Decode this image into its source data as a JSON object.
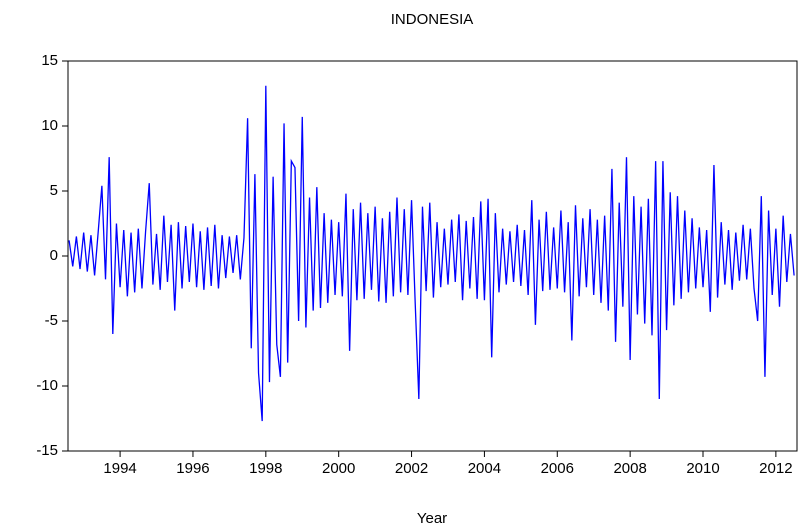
{
  "chart_data": {
    "type": "line",
    "title": "INDONESIA",
    "x_label": "Year",
    "xlim": [
      1992.57,
      2012.58
    ],
    "xticks": [
      1994,
      1996,
      1998,
      2000,
      2002,
      2004,
      2006,
      2008,
      2010,
      2012
    ],
    "ylim": [
      -15,
      15
    ],
    "yticks": [
      -15,
      -10,
      -5,
      0,
      5,
      10,
      15
    ],
    "series": [
      {
        "color": "#0000ff",
        "x": [
          1992.6,
          1992.7,
          1992.8,
          1992.9,
          1993.0,
          1993.1,
          1993.2,
          1993.3,
          1993.4,
          1993.5,
          1993.6,
          1993.7,
          1993.8,
          1993.9,
          1994.0,
          1994.1,
          1994.2,
          1994.3,
          1994.4,
          1994.5,
          1994.6,
          1994.7,
          1994.8,
          1994.9,
          1995.0,
          1995.1,
          1995.2,
          1995.3,
          1995.4,
          1995.5,
          1995.6,
          1995.7,
          1995.8,
          1995.9,
          1996.0,
          1996.1,
          1996.2,
          1996.3,
          1996.4,
          1996.5,
          1996.6,
          1996.7,
          1996.8,
          1996.9,
          1997.0,
          1997.1,
          1997.2,
          1997.3,
          1997.4,
          1997.5,
          1997.6,
          1997.7,
          1997.8,
          1997.9,
          1998.0,
          1998.1,
          1998.2,
          1998.3,
          1998.4,
          1998.5,
          1998.6,
          1998.7,
          1998.8,
          1998.9,
          1999.0,
          1999.1,
          1999.2,
          1999.3,
          1999.4,
          1999.5,
          1999.6,
          1999.7,
          1999.8,
          1999.9,
          2000.0,
          2000.1,
          2000.2,
          2000.3,
          2000.4,
          2000.5,
          2000.6,
          2000.7,
          2000.8,
          2000.9,
          2001.0,
          2001.1,
          2001.2,
          2001.3,
          2001.4,
          2001.5,
          2001.6,
          2001.7,
          2001.8,
          2001.9,
          2002.0,
          2002.1,
          2002.2,
          2002.3,
          2002.4,
          2002.5,
          2002.6,
          2002.7,
          2002.8,
          2002.9,
          2003.0,
          2003.1,
          2003.2,
          2003.3,
          2003.4,
          2003.5,
          2003.6,
          2003.7,
          2003.8,
          2003.9,
          2004.0,
          2004.1,
          2004.2,
          2004.3,
          2004.4,
          2004.5,
          2004.6,
          2004.7,
          2004.8,
          2004.9,
          2005.0,
          2005.1,
          2005.2,
          2005.3,
          2005.4,
          2005.5,
          2005.6,
          2005.7,
          2005.8,
          2005.9,
          2006.0,
          2006.1,
          2006.2,
          2006.3,
          2006.4,
          2006.5,
          2006.6,
          2006.7,
          2006.8,
          2006.9,
          2007.0,
          2007.1,
          2007.2,
          2007.3,
          2007.4,
          2007.5,
          2007.6,
          2007.7,
          2007.8,
          2007.9,
          2008.0,
          2008.1,
          2008.2,
          2008.3,
          2008.4,
          2008.5,
          2008.6,
          2008.7,
          2008.8,
          2008.9,
          2009.0,
          2009.1,
          2009.2,
          2009.3,
          2009.4,
          2009.5,
          2009.6,
          2009.7,
          2009.8,
          2009.9,
          2010.0,
          2010.1,
          2010.2,
          2010.3,
          2010.4,
          2010.5,
          2010.6,
          2010.7,
          2010.8,
          2010.9,
          2011.0,
          2011.1,
          2011.2,
          2011.3,
          2011.4,
          2011.5,
          2011.6,
          2011.7,
          2011.8,
          2011.9,
          2012.0,
          2012.1,
          2012.2,
          2012.3,
          2012.4,
          2012.5
        ],
        "values": [
          1.2,
          -0.8,
          1.5,
          -1.0,
          1.8,
          -1.2,
          1.6,
          -1.5,
          1.9,
          5.4,
          -1.8,
          7.6,
          -6.0,
          2.5,
          -2.4,
          2.0,
          -3.1,
          1.8,
          -2.8,
          2.1,
          -2.5,
          1.9,
          5.6,
          -2.2,
          1.7,
          -2.6,
          3.1,
          -2.0,
          2.4,
          -4.2,
          2.6,
          -2.5,
          2.3,
          -2.0,
          2.5,
          -2.4,
          1.9,
          -2.6,
          2.2,
          -2.3,
          2.4,
          -2.5,
          1.6,
          -1.7,
          1.5,
          -1.3,
          1.6,
          -1.8,
          1.4,
          10.6,
          -7.1,
          6.3,
          -9.0,
          -12.7,
          13.1,
          -9.7,
          6.1,
          -6.8,
          -9.3,
          10.2,
          -8.2,
          7.3,
          6.8,
          -5.0,
          10.7,
          -5.5,
          4.5,
          -4.2,
          5.3,
          -4.0,
          3.3,
          -3.6,
          2.8,
          -3.0,
          2.6,
          -3.1,
          4.8,
          -7.3,
          3.6,
          -3.4,
          4.1,
          -3.3,
          3.3,
          -2.6,
          3.8,
          -3.5,
          2.9,
          -3.6,
          3.4,
          -3.1,
          4.5,
          -2.8,
          3.6,
          -3.0,
          4.3,
          -3.6,
          -11.0,
          3.8,
          -2.7,
          4.1,
          -3.2,
          2.6,
          -2.4,
          2.1,
          -2.2,
          2.8,
          -2.0,
          3.2,
          -3.4,
          2.7,
          -2.5,
          3.0,
          -3.3,
          4.2,
          -3.4,
          4.4,
          -7.8,
          3.3,
          -2.8,
          2.1,
          -2.2,
          1.9,
          -2.0,
          2.4,
          -2.3,
          2.0,
          -3.0,
          4.3,
          -5.3,
          2.8,
          -2.7,
          3.4,
          -2.6,
          2.2,
          -2.5,
          3.5,
          -2.8,
          2.6,
          -6.5,
          3.9,
          -3.1,
          2.9,
          -2.4,
          3.6,
          -3.0,
          2.8,
          -3.6,
          3.1,
          -4.2,
          6.7,
          -6.6,
          4.1,
          -3.9,
          7.6,
          -8.0,
          4.6,
          -4.5,
          3.8,
          -5.2,
          4.4,
          -6.1,
          7.3,
          -11.0,
          7.3,
          -5.7,
          4.9,
          -3.8,
          4.6,
          -3.3,
          3.5,
          -2.8,
          2.9,
          -2.5,
          2.2,
          -2.4,
          2.0,
          -4.3,
          7.0,
          -3.2,
          2.6,
          -2.2,
          2.0,
          -2.6,
          1.8,
          -1.9,
          2.4,
          -1.8,
          2.1,
          -2.5,
          -5.0,
          4.6,
          -9.3,
          3.5,
          -3.0,
          2.1,
          -3.9,
          3.1,
          -2.0,
          1.7,
          -1.5
        ]
      }
    ]
  }
}
